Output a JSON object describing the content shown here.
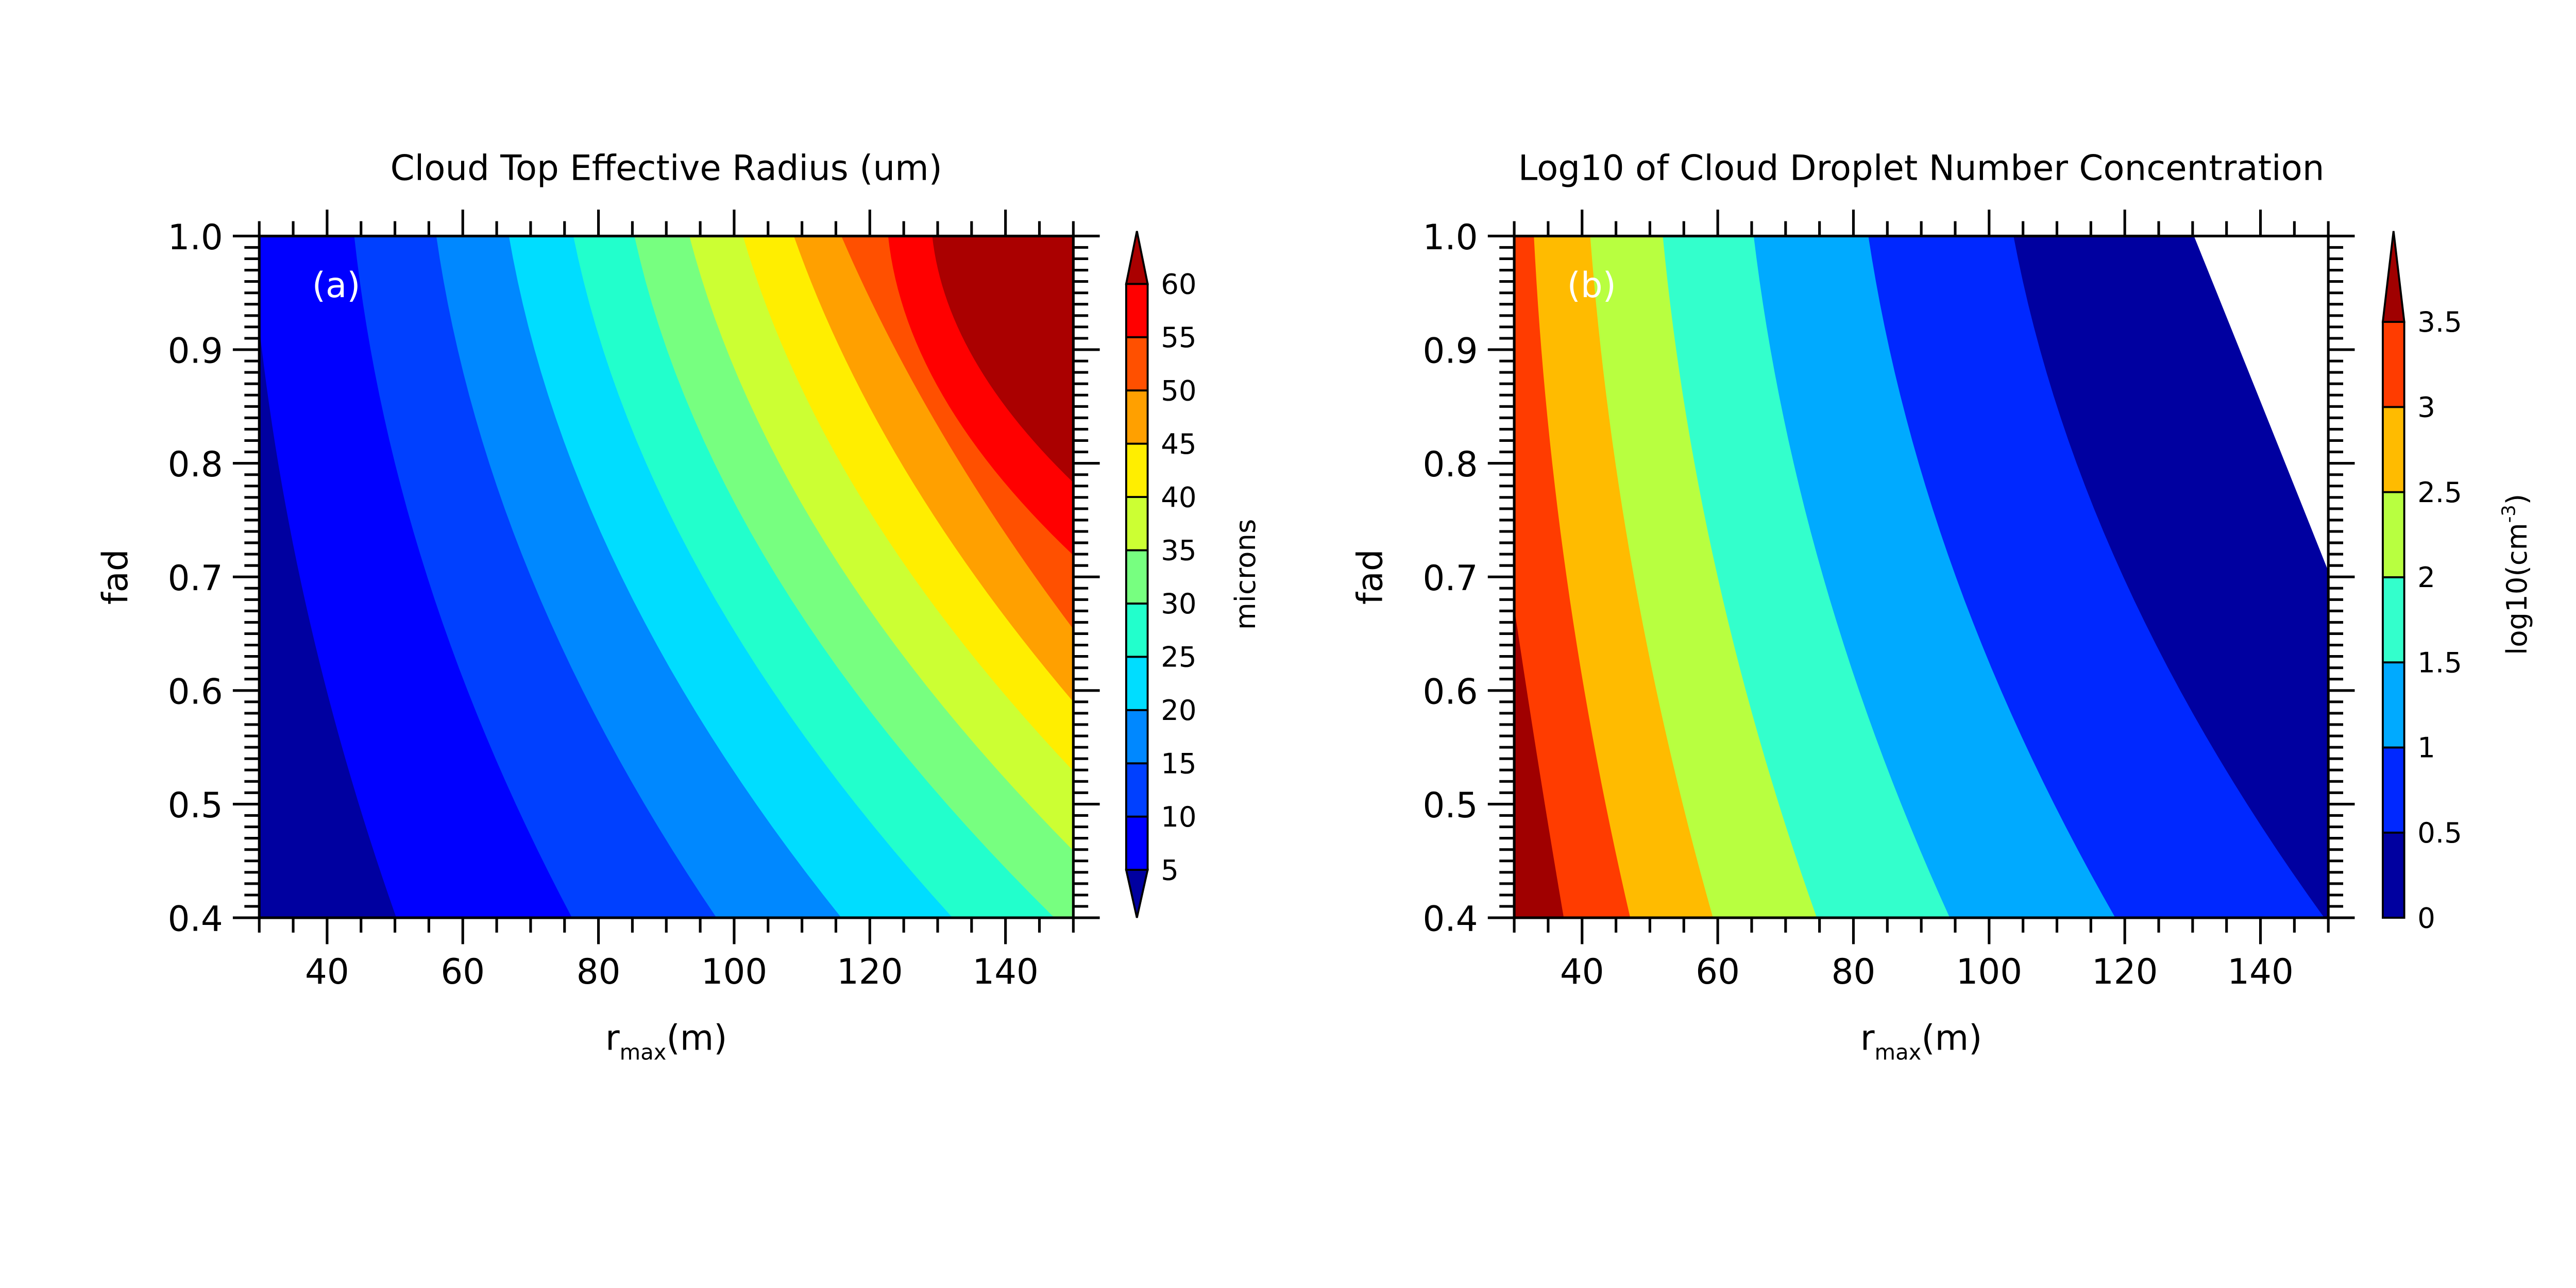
{
  "chart_data": [
    {
      "type": "contour",
      "id": "a",
      "title": "Cloud Top Effective Radius (um)",
      "panel_label": "(a)",
      "xlabel_main": "r",
      "xlabel_sub": "max",
      "xlabel_unit": "(m)",
      "ylabel": "fad",
      "xlim": [
        30,
        150
      ],
      "ylim": [
        0.4,
        1.0
      ],
      "xticks": [
        40,
        60,
        80,
        100,
        120,
        140
      ],
      "yticks": [
        "0.4",
        "0.5",
        "0.6",
        "0.7",
        "0.8",
        "0.9",
        "1.0"
      ],
      "colorbar": {
        "label": "microns",
        "levels": [
          5,
          10,
          15,
          20,
          25,
          30,
          35,
          40,
          45,
          50,
          55,
          60
        ],
        "tick_labels": [
          "5",
          "10",
          "15",
          "20",
          "25",
          "30",
          "35",
          "40",
          "45",
          "50",
          "55",
          "60"
        ],
        "colors": [
          "#0000a0",
          "#0000ff",
          "#0040ff",
          "#0088ff",
          "#00ddff",
          "#22ffcc",
          "#77ff80",
          "#ccff33",
          "#ffee00",
          "#ffa000",
          "#ff5000",
          "#ff0000",
          "#aa0000"
        ],
        "extend": "both"
      },
      "fill_side": "right",
      "contours": [
        {
          "level": 5,
          "points": [
            [
              30,
              0.92
            ],
            [
              35.8,
              0.705
            ],
            [
              50.2,
              0.4
            ]
          ]
        },
        {
          "level": 10,
          "points": [
            [
              44,
              1.0
            ],
            [
              54.5,
              0.705
            ],
            [
              76.1,
              0.4
            ]
          ]
        },
        {
          "level": 15,
          "points": [
            [
              56.1,
              1.0
            ],
            [
              69.7,
              0.705
            ],
            [
              97.4,
              0.4
            ]
          ]
        },
        {
          "level": 20,
          "points": [
            [
              66.8,
              1.0
            ],
            [
              83.0,
              0.705
            ],
            [
              115.8,
              0.4
            ]
          ]
        },
        {
          "level": 25,
          "points": [
            [
              76.3,
              1.0
            ],
            [
              94.9,
              0.705
            ],
            [
              132.2,
              0.4
            ]
          ]
        },
        {
          "level": 30,
          "points": [
            [
              85.3,
              1.0
            ],
            [
              105.8,
              0.705
            ],
            [
              147.2,
              0.4
            ]
          ]
        },
        {
          "level": 35,
          "points": [
            [
              93.4,
              1.0
            ],
            [
              116.1,
              0.705
            ],
            [
              150,
              0.459
            ]
          ]
        },
        {
          "level": 40,
          "points": [
            [
              101.3,
              1.0
            ],
            [
              125.8,
              0.705
            ],
            [
              150,
              0.529
            ]
          ]
        },
        {
          "level": 45,
          "points": [
            [
              108.8,
              1.0
            ],
            [
              135.0,
              0.705
            ],
            [
              150,
              0.59
            ]
          ]
        },
        {
          "level": 50,
          "points": [
            [
              115.8,
              1.0
            ],
            [
              143.8,
              0.705
            ],
            [
              150,
              0.654
            ]
          ]
        },
        {
          "level": 55,
          "points": [
            [
              122.7,
              1.0
            ],
            [
              127.3,
              0.9
            ],
            [
              150,
              0.719
            ]
          ]
        },
        {
          "level": 60,
          "points": [
            [
              129.2,
              1.0
            ],
            [
              134.6,
              0.9
            ],
            [
              150,
              0.783
            ]
          ]
        }
      ]
    },
    {
      "type": "contour",
      "id": "b",
      "title": "Log10 of Cloud Droplet Number Concentration",
      "panel_label": "(b)",
      "xlabel_main": "r",
      "xlabel_sub": "max",
      "xlabel_unit": "(m)",
      "ylabel": "fad",
      "xlim": [
        30,
        150
      ],
      "ylim": [
        0.4,
        1.0
      ],
      "xticks": [
        40,
        60,
        80,
        100,
        120,
        140
      ],
      "yticks": [
        "0.4",
        "0.5",
        "0.6",
        "0.7",
        "0.8",
        "0.9",
        "1.0"
      ],
      "colorbar": {
        "label_main": "log10(cm",
        "label_sup": "-3",
        "label_end": ")",
        "levels": [
          0,
          0.5,
          1,
          1.5,
          2,
          2.5,
          3,
          3.5
        ],
        "tick_labels": [
          "0",
          "0.5",
          "1",
          "1.5",
          "2",
          "2.5",
          "3",
          "3.5"
        ],
        "colors": [
          "#ffffff",
          "#0000a0",
          "#0028ff",
          "#00aaff",
          "#33ffcc",
          "#b8ff40",
          "#ffbb00",
          "#ff3c00",
          "#a00000"
        ],
        "extend": "max"
      },
      "fill_side": "left",
      "contours": [
        {
          "level": 0,
          "points": [
            [
              130.2,
              1.0
            ],
            [
              140.3,
              0.85
            ],
            [
              150,
              0.705
            ]
          ]
        },
        {
          "level": 0.5,
          "points": [
            [
              103.6,
              1.0
            ],
            [
              119.4,
              0.705
            ],
            [
              149.4,
              0.4
            ]
          ]
        },
        {
          "level": 1,
          "points": [
            [
              82.2,
              1.0
            ],
            [
              94.8,
              0.705
            ],
            [
              118.6,
              0.4
            ]
          ]
        },
        {
          "level": 1.5,
          "points": [
            [
              65.3,
              1.0
            ],
            [
              75.3,
              0.705
            ],
            [
              94.2,
              0.4
            ]
          ]
        },
        {
          "level": 2,
          "points": [
            [
              51.9,
              1.0
            ],
            [
              59.8,
              0.705
            ],
            [
              74.6,
              0.4
            ]
          ]
        },
        {
          "level": 2.5,
          "points": [
            [
              41.2,
              1.0
            ],
            [
              47.5,
              0.705
            ],
            [
              59.3,
              0.4
            ]
          ]
        },
        {
          "level": 3,
          "points": [
            [
              32.9,
              1.0
            ],
            [
              37.6,
              0.705
            ],
            [
              47.1,
              0.4
            ]
          ]
        },
        {
          "level": 3.5,
          "points": [
            [
              30,
              0.673
            ],
            [
              33.3,
              0.545
            ],
            [
              37.3,
              0.4
            ]
          ]
        }
      ]
    }
  ]
}
